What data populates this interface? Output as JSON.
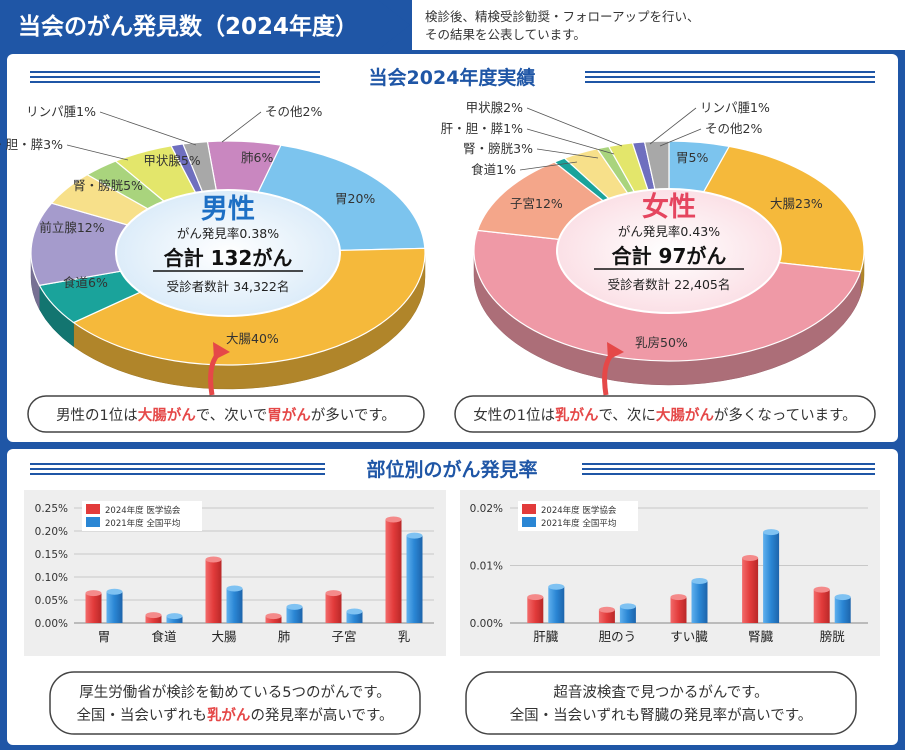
{
  "header": {
    "title": "当会のがん発見数（2024年度）",
    "note_line1": "検診後、精検受診勧奨・フォローアップを行い、",
    "note_line2": "その結果を公表しています。"
  },
  "section1_title": "当会2024年度実績",
  "section2_title": "部位別のがん発見率",
  "colors": {
    "navy": "#1f56a6",
    "red": "#e23b3b",
    "blue": "#2a86d4",
    "accent_red": "#e54848",
    "male_title": "#1d6fc4",
    "female_title": "#e5455f"
  },
  "chart_data": [
    {
      "type": "pie",
      "title": "男性",
      "rate_label": "がん発見率0.38%",
      "total_label": "合計 132がん",
      "examinees_label": "受診者数計 34,322名",
      "slices": [
        {
          "label": "肺6%",
          "value": 6,
          "color": "#c987c0"
        },
        {
          "label": "胃20%",
          "value": 20,
          "color": "#7cc4ee"
        },
        {
          "label": "大腸40%",
          "value": 40,
          "color": "#f5b93b"
        },
        {
          "label": "食道6%",
          "value": 6,
          "color": "#1aa39b"
        },
        {
          "label": "前立腺12%",
          "value": 12,
          "color": "#a59bcc"
        },
        {
          "label": "腎・膀胱5%",
          "value": 5,
          "color": "#f7e08a"
        },
        {
          "label": "肝・胆・膵3%",
          "value": 3,
          "color": "#a9d47d"
        },
        {
          "label": "甲状腺5%",
          "value": 5,
          "color": "#e3e66b"
        },
        {
          "label": "リンパ腫1%",
          "value": 1,
          "color": "#6f6fbf"
        },
        {
          "label": "その他2%",
          "value": 2,
          "color": "#a8a8a8"
        }
      ],
      "callout_pre": "男性の1位は",
      "callout_hl1": "大腸がん",
      "callout_mid": "で、次いで",
      "callout_hl2": "胃がん",
      "callout_post": "が多いです。"
    },
    {
      "type": "pie",
      "title": "女性",
      "rate_label": "がん発見率0.43%",
      "total_label": "合計 97がん",
      "examinees_label": "受診者数計 22,405名",
      "slices": [
        {
          "label": "胃5%",
          "value": 5,
          "color": "#7cc4ee"
        },
        {
          "label": "大腸23%",
          "value": 23,
          "color": "#f5b93b"
        },
        {
          "label": "乳房50%",
          "value": 50,
          "color": "#ef99a6"
        },
        {
          "label": "子宮12%",
          "value": 12,
          "color": "#f4a68a"
        },
        {
          "label": "食道1%",
          "value": 1,
          "color": "#1aa39b"
        },
        {
          "label": "腎・膀胱3%",
          "value": 3,
          "color": "#f7e08a"
        },
        {
          "label": "肝・胆・膵1%",
          "value": 1,
          "color": "#a9d47d"
        },
        {
          "label": "甲状腺2%",
          "value": 2,
          "color": "#e3e66b"
        },
        {
          "label": "リンパ腫1%",
          "value": 1,
          "color": "#6f6fbf"
        },
        {
          "label": "その他2%",
          "value": 2,
          "color": "#a8a8a8"
        }
      ],
      "callout_pre": "女性の1位は",
      "callout_hl1": "乳がん",
      "callout_mid": "で、次に",
      "callout_hl2": "大腸がん",
      "callout_post": "が多くなっています。"
    },
    {
      "type": "bar",
      "categories": [
        "胃",
        "食道",
        "大腸",
        "肺",
        "子宮",
        "乳"
      ],
      "y_ticks": [
        "0.00%",
        "0.05%",
        "0.10%",
        "0.15%",
        "0.20%",
        "0.25%"
      ],
      "ylim": [
        0,
        0.25
      ],
      "series": [
        {
          "name": "2024年度 医学協会",
          "values": [
            0.065,
            0.017,
            0.138,
            0.015,
            0.065,
            0.225
          ]
        },
        {
          "name": "2021年度 全国平均",
          "values": [
            0.068,
            0.015,
            0.075,
            0.035,
            0.025,
            0.19
          ]
        }
      ],
      "legend": "top-left",
      "grid": true,
      "caption_line1": "厚生労働省が検診を勧めている5つのがんです。",
      "caption_pre": "全国・当会いずれも",
      "caption_hl": "乳がん",
      "caption_post": "の発見率が高いです。"
    },
    {
      "type": "bar",
      "categories": [
        "肝臓",
        "胆のう",
        "すい臓",
        "腎臓",
        "膀胱"
      ],
      "y_ticks": [
        "0.00%",
        "0.01%",
        "0.02%"
      ],
      "ylim": [
        0,
        0.02
      ],
      "series": [
        {
          "name": "2024年度 医学協会",
          "values": [
            0.0045,
            0.0023,
            0.0045,
            0.0113,
            0.0058
          ]
        },
        {
          "name": "2021年度 全国平均",
          "values": [
            0.0063,
            0.0029,
            0.0073,
            0.0158,
            0.0045
          ]
        }
      ],
      "legend": "top-left",
      "grid": true,
      "caption_line1": "超音波検査で見つかるがんです。",
      "caption_line2": "全国・当会いずれも腎臓の発見率が高いです。"
    }
  ]
}
